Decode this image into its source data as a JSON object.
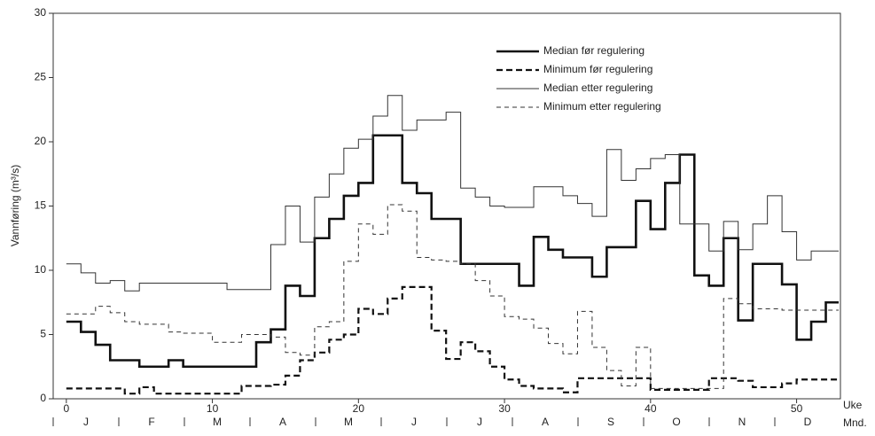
{
  "chart_data": {
    "type": "step",
    "ylabel": "Vannføring (m³/s)",
    "xlabel": "Uke",
    "month_label": "Mnd.",
    "months": [
      "J",
      "F",
      "M",
      "A",
      "M",
      "J",
      "J",
      "A",
      "S",
      "O",
      "N",
      "D"
    ],
    "x": [
      0,
      1,
      2,
      3,
      4,
      5,
      6,
      7,
      8,
      9,
      10,
      11,
      12,
      13,
      14,
      15,
      16,
      17,
      18,
      19,
      20,
      21,
      22,
      23,
      24,
      25,
      26,
      27,
      28,
      29,
      30,
      31,
      32,
      33,
      34,
      35,
      36,
      37,
      38,
      39,
      40,
      41,
      42,
      43,
      44,
      45,
      46,
      47,
      48,
      49,
      50,
      51,
      52
    ],
    "xlim": [
      -0.9,
      53
    ],
    "xticks": [
      0,
      10,
      20,
      30,
      40,
      50
    ],
    "ylim": [
      0,
      30
    ],
    "yticks": [
      0,
      5,
      10,
      15,
      20,
      25,
      30
    ],
    "legend": "upper right",
    "series": [
      {
        "name": "Median før regulering",
        "color": "#111111",
        "width": 2.6,
        "dash": "none",
        "values": [
          6,
          5.2,
          4.2,
          3,
          3,
          2.5,
          2.5,
          3,
          2.5,
          2.5,
          2.5,
          2.5,
          2.5,
          4.4,
          5.4,
          8.8,
          8,
          12.5,
          14,
          15.8,
          16.8,
          20.5,
          20.5,
          16.8,
          16,
          14,
          14,
          10.5,
          10.5,
          10.5,
          10.5,
          8.8,
          12.6,
          11.6,
          11,
          11,
          9.5,
          11.8,
          11.8,
          15.4,
          13.2,
          16.8,
          19,
          9.6,
          8.8,
          12.5,
          6.1,
          10.5,
          10.5,
          8.9,
          4.6,
          6,
          7.5
        ]
      },
      {
        "name": "Minimum før regulering",
        "color": "#111111",
        "width": 2.2,
        "dash": "7 4",
        "values": [
          0.8,
          0.8,
          0.8,
          0.8,
          0.4,
          0.9,
          0.4,
          0.4,
          0.4,
          0.4,
          0.4,
          0.4,
          1,
          1,
          1.1,
          1.8,
          3,
          3.6,
          4.6,
          5,
          7,
          6.6,
          7.8,
          8.7,
          8.7,
          5.3,
          3.1,
          4.4,
          3.7,
          2.5,
          1.5,
          1,
          0.8,
          0.8,
          0.5,
          1.6,
          1.6,
          1.6,
          1.6,
          1.6,
          0.7,
          0.7,
          0.7,
          0.7,
          1.6,
          1.6,
          1.4,
          0.9,
          0.9,
          1.2,
          1.5,
          1.5,
          1.5
        ]
      },
      {
        "name": "Median etter regulering",
        "color": "#333333",
        "width": 1,
        "dash": "none",
        "values": [
          10.5,
          9.8,
          9,
          9.2,
          8.4,
          9,
          9,
          9,
          9,
          9,
          9,
          8.5,
          8.5,
          8.5,
          12,
          15,
          12.2,
          15.7,
          17.5,
          19.5,
          20.2,
          22,
          23.6,
          20.9,
          21.7,
          21.7,
          22.3,
          16.4,
          15.7,
          15,
          14.9,
          14.9,
          16.5,
          16.5,
          15.8,
          15.2,
          14.2,
          19.4,
          17,
          17.9,
          18.7,
          19,
          13.6,
          13.6,
          11.5,
          13.8,
          11.6,
          13.6,
          15.8,
          13,
          10.8,
          11.5,
          11.5
        ]
      },
      {
        "name": "Minimum etter regulering",
        "color": "#333333",
        "width": 1,
        "dash": "5 4",
        "values": [
          6.6,
          6.6,
          7.2,
          6.7,
          6,
          5.8,
          5.8,
          5.2,
          5.1,
          5.1,
          4.4,
          4.4,
          5,
          5,
          4.8,
          3.6,
          3.4,
          5.6,
          6,
          10.7,
          13.6,
          12.8,
          15.1,
          14.6,
          11,
          10.8,
          10.7,
          10.5,
          9.2,
          8,
          6.4,
          6.2,
          5.5,
          4.3,
          3.5,
          6.8,
          4,
          2.2,
          1,
          4,
          0.8,
          0.8,
          0.8,
          0.8,
          0.8,
          7.8,
          7.4,
          7,
          7,
          6.9,
          6.9,
          6.9,
          6.9
        ]
      }
    ]
  }
}
